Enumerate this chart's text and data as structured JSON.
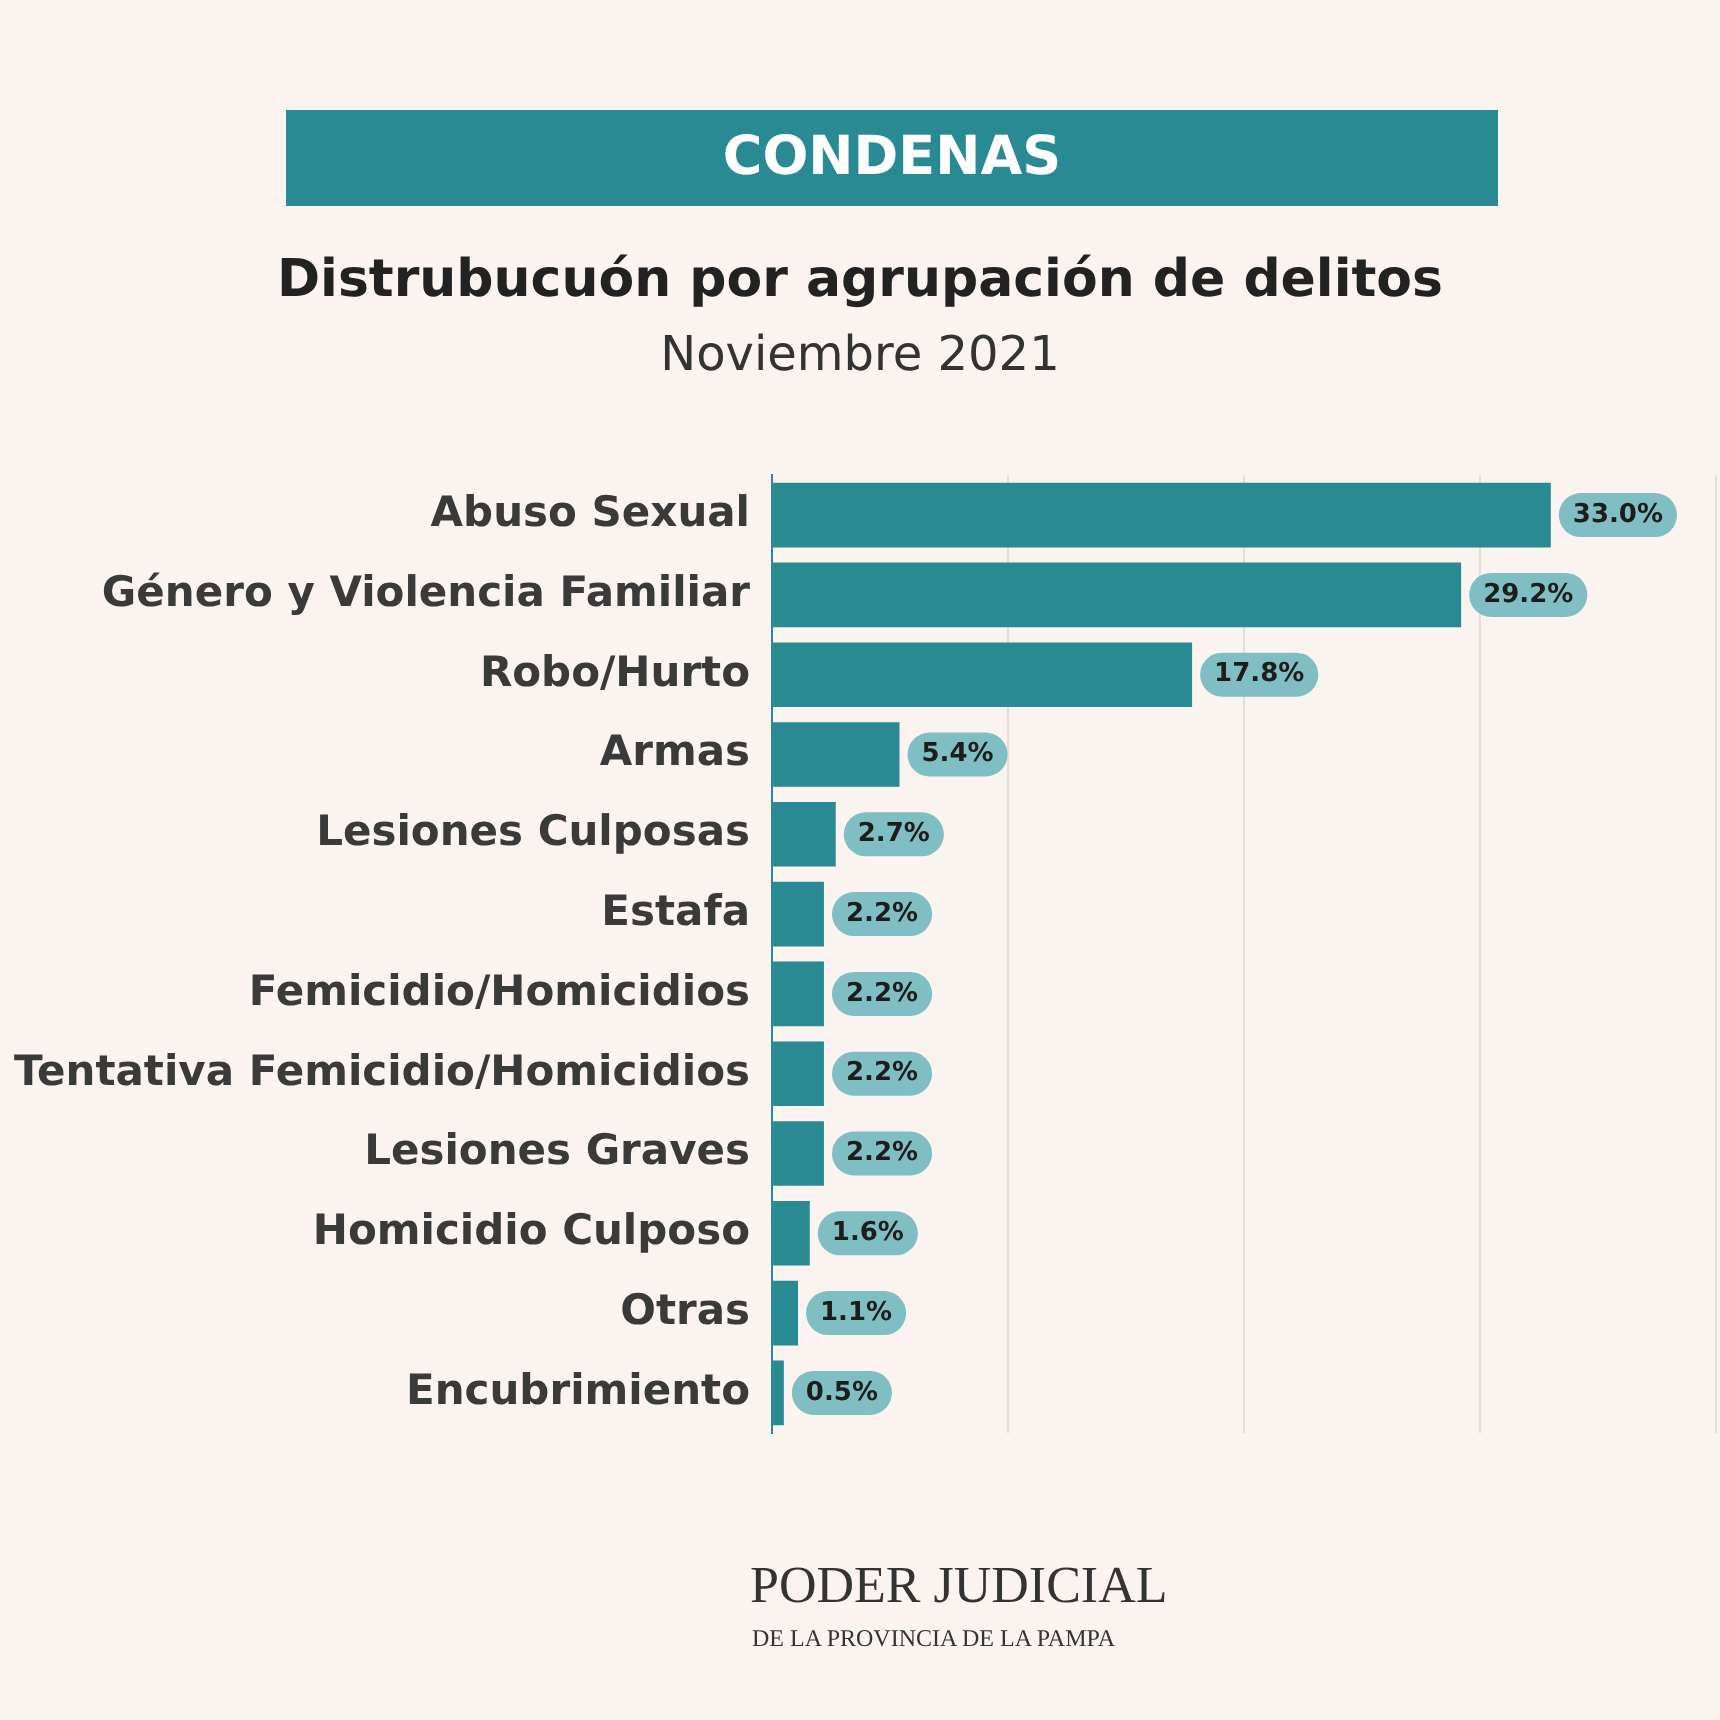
{
  "chart_data": {
    "type": "bar",
    "orientation": "horizontal",
    "title": "CONDENAS",
    "subtitle": "Distrubucuón por agrupación de delitos",
    "annotations": [
      "Noviembre 2021",
      "PODER JUDICIAL",
      "DE LA PROVINCIA DE LA PAMPA"
    ],
    "categories": [
      "Abuso Sexual",
      "Género y Violencia Familiar",
      "Robo/Hurto",
      "Armas",
      "Lesiones Culposas",
      "Estafa",
      "Femicidio/Homicidios",
      "Tentativa Femicidio/Homicidios",
      "Lesiones Graves",
      "Homicidio Culposo",
      "Otras",
      "Encubrimiento"
    ],
    "values": [
      33.0,
      29.2,
      17.8,
      5.4,
      2.7,
      2.2,
      2.2,
      2.2,
      2.2,
      1.6,
      1.1,
      0.5
    ],
    "value_labels": [
      "33.0%",
      "29.2%",
      "17.8%",
      "5.4%",
      "2.7%",
      "2.2%",
      "2.2%",
      "2.2%",
      "2.2%",
      "1.6%",
      "1.1%",
      "0.5%"
    ],
    "color": "#2a8a93",
    "xlim": [
      0,
      40
    ],
    "xticks": [
      {
        "value": 0,
        "label": null
      },
      {
        "value": 10,
        "label": null
      },
      {
        "value": 20,
        "label": null
      },
      {
        "value": 30,
        "label": null
      },
      {
        "value": 40,
        "label": null
      }
    ],
    "grid": "x",
    "tick_labels": "y"
  }
}
